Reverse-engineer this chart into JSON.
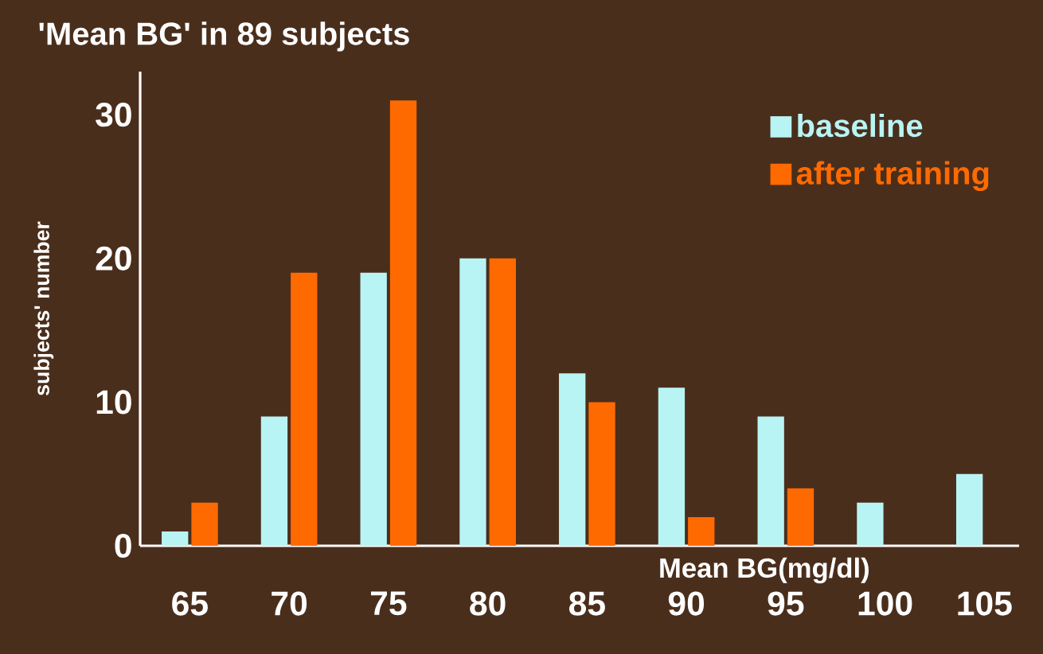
{
  "chart_data": {
    "type": "bar",
    "title": "'Mean BG' in 89 subjects",
    "xlabel": "Mean BG(mg/dl)",
    "ylabel": "subjects' number",
    "categories": [
      "65",
      "70",
      "75",
      "80",
      "85",
      "90",
      "95",
      "100",
      "105"
    ],
    "series": [
      {
        "name": "baseline",
        "color": "#b8f4f4",
        "values": [
          1,
          9,
          19,
          20,
          12,
          11,
          9,
          3,
          5
        ]
      },
      {
        "name": "after training",
        "color": "#ff6a00",
        "values": [
          3,
          19,
          31,
          20,
          10,
          2,
          4,
          0,
          0
        ]
      }
    ],
    "ylim": [
      0,
      33
    ],
    "yticks": [
      0,
      10,
      20,
      30
    ],
    "legend": "top right",
    "grid": false
  }
}
